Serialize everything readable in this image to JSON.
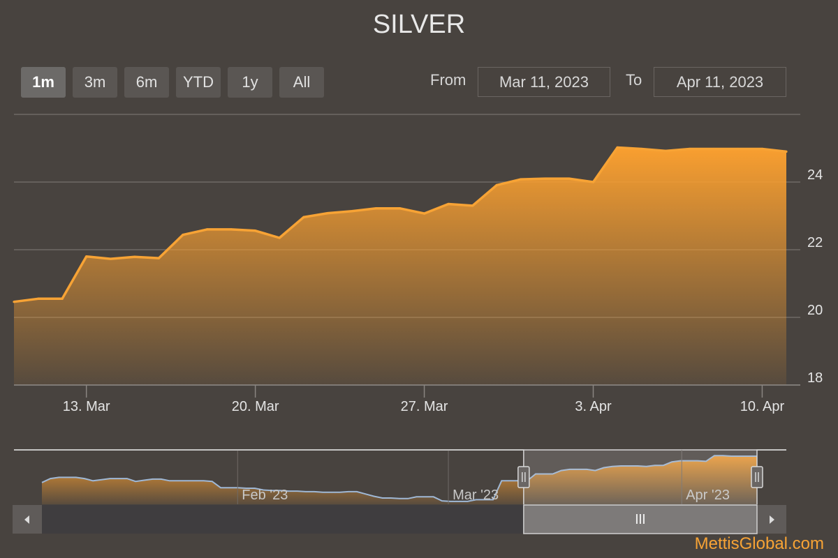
{
  "chart_data": {
    "type": "area",
    "title": "SILVER",
    "x": [
      "2023-03-10",
      "2023-03-11",
      "2023-03-12",
      "2023-03-13",
      "2023-03-14",
      "2023-03-15",
      "2023-03-16",
      "2023-03-17",
      "2023-03-18",
      "2023-03-19",
      "2023-03-20",
      "2023-03-21",
      "2023-03-22",
      "2023-03-23",
      "2023-03-24",
      "2023-03-25",
      "2023-03-26",
      "2023-03-27",
      "2023-03-28",
      "2023-03-29",
      "2023-03-30",
      "2023-03-31",
      "2023-04-01",
      "2023-04-02",
      "2023-04-03",
      "2023-04-04",
      "2023-04-05",
      "2023-04-06",
      "2023-04-07",
      "2023-04-08",
      "2023-04-09",
      "2023-04-10",
      "2023-04-11"
    ],
    "values": [
      20.46,
      20.55,
      20.55,
      21.8,
      21.73,
      21.79,
      21.75,
      22.44,
      22.6,
      22.6,
      22.56,
      22.35,
      22.96,
      23.08,
      23.14,
      23.22,
      23.22,
      23.07,
      23.35,
      23.3,
      23.91,
      24.08,
      24.1,
      24.1,
      24.0,
      25.02,
      24.98,
      24.92,
      24.98,
      24.98,
      24.98,
      24.98,
      24.9
    ],
    "ylim": [
      18,
      26
    ],
    "yticks": [
      18,
      20,
      22,
      24
    ],
    "xticks": [
      {
        "date": "2023-03-13",
        "label": "13. Mar"
      },
      {
        "date": "2023-03-20",
        "label": "20. Mar"
      },
      {
        "date": "2023-03-27",
        "label": "27. Mar"
      },
      {
        "date": "2023-04-03",
        "label": "3. Apr"
      },
      {
        "date": "2023-04-10",
        "label": "10. Apr"
      }
    ],
    "grid": true,
    "color": "#f7a335",
    "navigator": {
      "values": [
        20.3,
        21.0,
        21.2,
        21.2,
        21.2,
        21.0,
        20.6,
        20.8,
        21.0,
        21.0,
        21.0,
        20.5,
        20.7,
        20.9,
        20.9,
        20.6,
        20.6,
        20.6,
        20.6,
        20.6,
        20.5,
        19.4,
        19.4,
        19.4,
        19.3,
        19.3,
        19.0,
        18.9,
        18.9,
        18.8,
        18.8,
        18.7,
        18.7,
        18.6,
        18.6,
        18.6,
        18.7,
        18.7,
        18.3,
        17.9,
        17.6,
        17.6,
        17.5,
        17.5,
        17.8,
        17.8,
        17.8,
        17.1,
        17.0,
        17.0,
        17.0,
        17.3,
        17.3,
        17.3,
        20.6,
        20.6,
        20.6,
        20.6,
        21.8,
        21.8,
        21.8,
        22.4,
        22.6,
        22.6,
        22.6,
        22.4,
        22.9,
        23.1,
        23.2,
        23.2,
        23.2,
        23.1,
        23.3,
        23.3,
        23.9,
        24.1,
        24.1,
        24.1,
        24.0,
        25.0,
        25.0,
        24.9,
        24.9,
        24.9,
        24.9
      ],
      "ylim": [
        16.5,
        26
      ],
      "labels": [
        "Feb '23",
        "Mar '23",
        "Apr '23"
      ],
      "label_dates": [
        "2023-02-01",
        "2023-03-01",
        "2023-04-01"
      ],
      "start_date": "2023-01-06",
      "end_date": "2023-04-11",
      "selected_from": "2023-03-11",
      "selected_to": "2023-04-11"
    }
  },
  "range_selector": {
    "buttons": [
      "1m",
      "3m",
      "6m",
      "YTD",
      "1y",
      "All"
    ],
    "active": "1m",
    "from_label": "From",
    "to_label": "To",
    "from_value": "Mar 11, 2023",
    "to_value": "Apr 11, 2023"
  },
  "credit": "MettisGlobal.com",
  "colors": {
    "background": "#48433f",
    "series": "#f7a335",
    "navigator_line": "#9fb8d6"
  }
}
